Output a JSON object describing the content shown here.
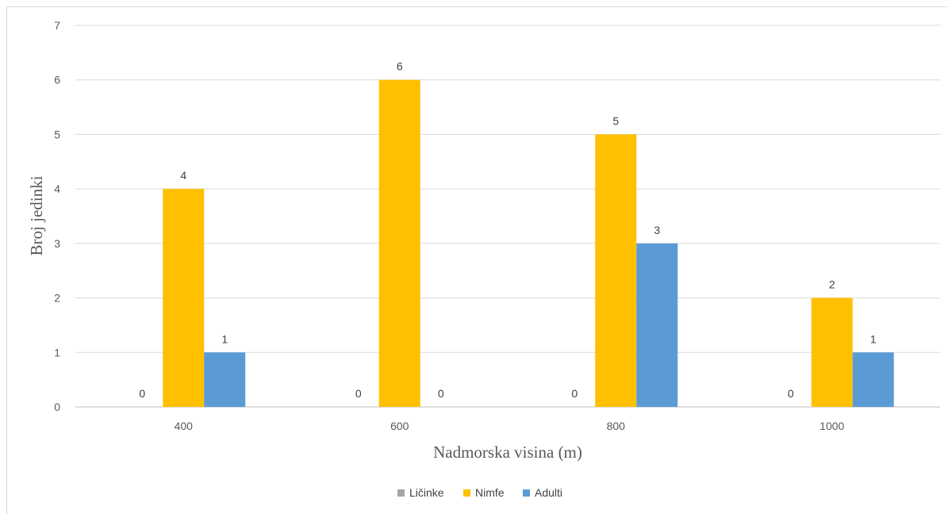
{
  "chart_data": {
    "type": "bar",
    "title": "",
    "xlabel": "Nadmorska visina (m)",
    "ylabel": "Broj jedinki",
    "categories": [
      "400",
      "600",
      "800",
      "1000"
    ],
    "series": [
      {
        "name": "Ličinke",
        "color": "#A5A5A5",
        "values": [
          0,
          0,
          0,
          0
        ]
      },
      {
        "name": "Nimfe",
        "color": "#FFC000",
        "values": [
          4,
          6,
          5,
          2
        ]
      },
      {
        "name": "Adulti",
        "color": "#5B9BD5",
        "values": [
          1,
          0,
          3,
          1
        ]
      }
    ],
    "ylim": [
      0,
      7
    ],
    "yticks": [
      "0",
      "1",
      "2",
      "3",
      "4",
      "5",
      "6",
      "7"
    ],
    "grid": true,
    "legend": "bottom"
  }
}
